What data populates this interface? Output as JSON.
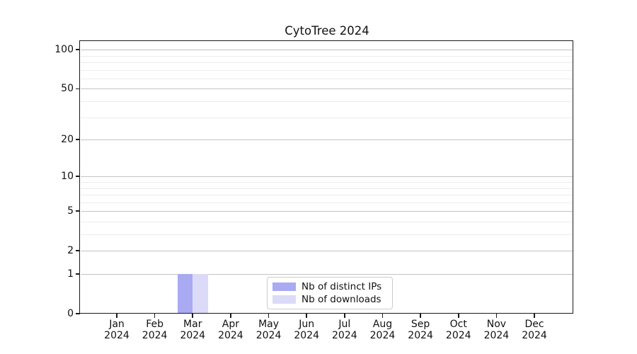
{
  "chart_data": {
    "type": "bar",
    "title": "CytoTree 2024",
    "categories": [
      "Jan",
      "Feb",
      "Mar",
      "Apr",
      "May",
      "Jun",
      "Jul",
      "Aug",
      "Sep",
      "Oct",
      "Nov",
      "Dec"
    ],
    "category_year": "2024",
    "series": [
      {
        "name": "Nb of distinct IPs",
        "color": "#a9aaf2",
        "values": [
          0,
          0,
          1,
          0,
          0,
          0,
          0,
          0,
          0,
          0,
          0,
          0
        ]
      },
      {
        "name": "Nb of downloads",
        "color": "#dbdbf8",
        "values": [
          0,
          0,
          1,
          0,
          0,
          0,
          0,
          0,
          0,
          0,
          0,
          0
        ]
      }
    ],
    "xlabel": "",
    "ylabel": "",
    "yscale": "log1p",
    "ylim": [
      0,
      115
    ],
    "y_major_ticks": [
      0,
      1,
      2,
      5,
      10,
      20,
      50,
      100
    ],
    "y_minor_gridlines": [
      3,
      4,
      6,
      7,
      8,
      9,
      30,
      40,
      60,
      70,
      80,
      90
    ],
    "grid": "horizontal major+minor",
    "legend": {
      "location": "bottom-center-inside"
    },
    "colors": {
      "major_grid": "#c3c3c3",
      "minor_grid": "#ececec",
      "spine": "#1a1a1a",
      "text": "#111111",
      "background": "#ffffff"
    }
  }
}
